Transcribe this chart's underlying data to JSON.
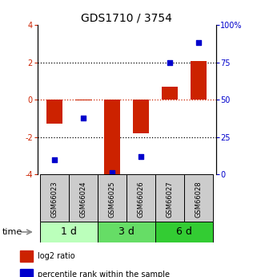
{
  "title": "GDS1710 / 3754",
  "samples": [
    "GSM66023",
    "GSM66024",
    "GSM66025",
    "GSM66026",
    "GSM66027",
    "GSM66028"
  ],
  "log2_ratio": [
    -1.3,
    -0.05,
    -4.2,
    -1.8,
    0.7,
    2.05
  ],
  "percentile_rank": [
    10,
    38,
    1,
    12,
    75,
    88
  ],
  "bar_color": "#cc2200",
  "dot_color": "#0000cc",
  "ylim_left": [
    -4,
    4
  ],
  "ylim_right": [
    0,
    100
  ],
  "yticks_left": [
    -4,
    -2,
    0,
    2,
    4
  ],
  "ytick_labels_left": [
    "-4",
    "-2",
    "0",
    "2",
    "4"
  ],
  "yticks_right": [
    0,
    25,
    50,
    75,
    100
  ],
  "ytick_labels_right": [
    "0",
    "25",
    "50",
    "75",
    "100%"
  ],
  "hlines": [
    -2,
    0,
    2
  ],
  "time_groups": [
    {
      "label": "1 d",
      "start": 0,
      "end": 2,
      "color": "#bbffbb"
    },
    {
      "label": "3 d",
      "start": 2,
      "end": 4,
      "color": "#66dd66"
    },
    {
      "label": "6 d",
      "start": 4,
      "end": 6,
      "color": "#33cc33"
    }
  ],
  "legend_items": [
    {
      "label": "log2 ratio",
      "color": "#cc2200"
    },
    {
      "label": "percentile rank within the sample",
      "color": "#0000cc"
    }
  ],
  "bar_width": 0.55,
  "dot_size": 20,
  "sample_box_color": "#cccccc",
  "title_fontsize": 10,
  "tick_fontsize": 7,
  "sample_label_fontsize": 6,
  "time_label_fontsize": 8,
  "time_group_fontsize": 9,
  "legend_fontsize": 7,
  "axis_color_left": "#cc2200",
  "axis_color_right": "#0000cc",
  "zero_line_color": "#cc2200",
  "dotted_line_color": "#000000"
}
